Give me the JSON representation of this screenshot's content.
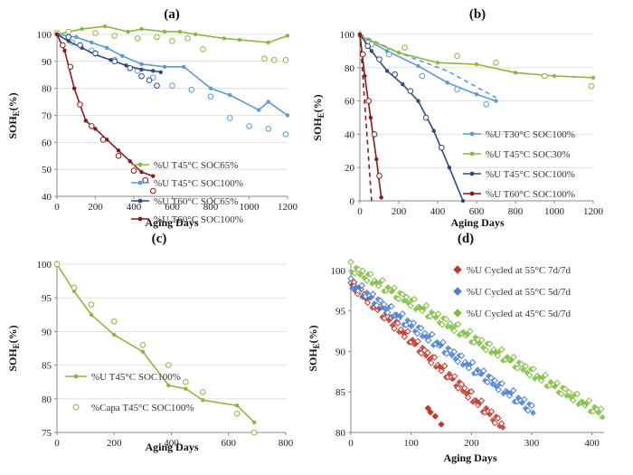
{
  "chart_data": [
    {
      "panel": "(a)",
      "type": "line",
      "xlabel": "Aging Days",
      "ylabel": "SOH",
      "ylabel_sub": "E",
      "ylabel_unit": "(%)",
      "xlim": [
        0,
        1200
      ],
      "ylim": [
        40,
        100
      ],
      "xticks": [
        0,
        200,
        400,
        600,
        800,
        1000,
        1200
      ],
      "yticks": [
        40,
        50,
        60,
        70,
        80,
        90,
        100
      ],
      "legend_position": "bottom-center",
      "series": [
        {
          "name": "%U T45°C SOC65%",
          "color": "#8db640",
          "marker": "dot",
          "x": [
            0,
            130,
            250,
            370,
            440,
            560,
            640,
            720,
            870,
            950,
            1100,
            1200
          ],
          "y": [
            100,
            102,
            103,
            101,
            102,
            101,
            101,
            100,
            98.5,
            98,
            97,
            99.5
          ],
          "scatter_x": [
            0,
            60,
            200,
            300,
            420,
            520,
            600,
            680,
            760,
            1080,
            1130,
            1190
          ],
          "scatter_y": [
            100.5,
            101,
            100.5,
            99.5,
            98.5,
            99,
            97.5,
            98.5,
            94.5,
            91,
            90.5,
            90.5
          ]
        },
        {
          "name": "%U T45°C SOC100%",
          "color": "#5b9bd5",
          "marker": "dot",
          "x": [
            0,
            100,
            180,
            260,
            340,
            440,
            560,
            660,
            800,
            900,
            1050,
            1100,
            1200
          ],
          "y": [
            100,
            99,
            97,
            95,
            92,
            89,
            88,
            88,
            80,
            77.5,
            72,
            75,
            70
          ],
          "scatter_x": [
            80,
            180,
            300,
            420,
            500,
            600,
            700,
            800,
            900,
            1000,
            1100,
            1190
          ],
          "scatter_y": [
            97,
            94,
            90.5,
            86.5,
            84,
            81,
            79.5,
            77,
            69,
            66,
            65,
            63
          ]
        },
        {
          "name": "%U T60°C SOC65%",
          "color": "#2e4a87",
          "marker": "dot",
          "x": [
            0,
            60,
            130,
            200,
            280,
            360,
            440,
            500,
            540
          ],
          "y": [
            100,
            97.5,
            95,
            92.5,
            90.5,
            88.5,
            87,
            86.5,
            86
          ],
          "scatter_x": [
            60,
            120,
            200,
            300,
            380,
            440,
            480,
            520
          ],
          "scatter_y": [
            99,
            96,
            93,
            90,
            87.5,
            84.5,
            83,
            81
          ]
        },
        {
          "name": "%U T60°C SOC100%",
          "color": "#8b1a1a",
          "marker": "dot",
          "x": [
            0,
            40,
            90,
            150,
            200,
            260,
            320,
            380,
            440,
            500
          ],
          "y": [
            100,
            94,
            80,
            68,
            65,
            61,
            57,
            53,
            49,
            47.5
          ],
          "scatter_x": [
            30,
            70,
            120,
            180,
            240,
            320,
            400,
            460,
            500
          ],
          "scatter_y": [
            96,
            88,
            74,
            66,
            61,
            55,
            49.5,
            46,
            42
          ]
        }
      ]
    },
    {
      "panel": "(b)",
      "type": "line",
      "xlabel": "Aging Days",
      "ylabel": "SOH",
      "ylabel_sub": "E",
      "ylabel_unit": "(%)",
      "xlim": [
        0,
        1200
      ],
      "ylim": [
        0,
        100
      ],
      "xticks": [
        0,
        200,
        400,
        600,
        800,
        1000,
        1200
      ],
      "yticks": [
        0,
        20,
        40,
        60,
        80,
        100
      ],
      "legend_position": "bottom-right",
      "series": [
        {
          "name": "%U T30°C SOC100%",
          "color": "#5b9bd5",
          "marker": "dot",
          "x": [
            0,
            140,
            300,
            450,
            600,
            700
          ],
          "y": [
            99,
            90,
            81,
            71,
            64,
            60
          ],
          "dashed_x": [
            0,
            200,
            450,
            700
          ],
          "dashed_y": [
            100,
            89,
            78,
            62
          ],
          "scatter_x": [
            40,
            150,
            320,
            500,
            650
          ],
          "scatter_y": [
            95,
            88,
            75,
            67,
            58
          ]
        },
        {
          "name": "%U T45°C SOC30%",
          "color": "#8db640",
          "marker": "dot",
          "x": [
            0,
            200,
            400,
            600,
            800,
            1000,
            1200
          ],
          "y": [
            99,
            89,
            83,
            82,
            77,
            75,
            74
          ],
          "scatter_x": [
            60,
            230,
            500,
            700,
            950,
            1190
          ],
          "scatter_y": [
            94,
            92,
            87,
            83,
            75,
            69
          ]
        },
        {
          "name": "%U T45°C SOC100%",
          "color": "#2e4a87",
          "marker": "dot",
          "x": [
            0,
            60,
            140,
            220,
            300,
            380,
            460,
            530
          ],
          "y": [
            100,
            90,
            78,
            70,
            60,
            42,
            20,
            0
          ],
          "scatter_x": [
            40,
            100,
            180,
            260,
            340,
            420
          ],
          "scatter_y": [
            93,
            85,
            76,
            66,
            50,
            32
          ]
        },
        {
          "name": "%U T60°C SOC100%",
          "color": "#8b1a1a",
          "marker": "dot",
          "x": [
            0,
            25,
            55,
            85,
            110
          ],
          "y": [
            100,
            75,
            50,
            25,
            2
          ],
          "dashed_x": [
            0,
            60
          ],
          "dashed_y": [
            100,
            0
          ],
          "scatter_x": [
            15,
            45,
            75,
            100
          ],
          "scatter_y": [
            88,
            60,
            40,
            15
          ]
        }
      ]
    },
    {
      "panel": "(c)",
      "type": "line",
      "xlabel": "Aging Days",
      "ylabel": "SOH",
      "ylabel_sub": "E",
      "ylabel_unit": "(%)",
      "xlim": [
        0,
        800
      ],
      "ylim": [
        75,
        100
      ],
      "xticks": [
        0,
        200,
        400,
        600,
        800
      ],
      "yticks": [
        75,
        80,
        85,
        90,
        95,
        100
      ],
      "legend_position": "bottom-left",
      "series": [
        {
          "name": "%U T45°C SOC100%",
          "color": "#8db640",
          "marker": "dot",
          "x": [
            0,
            60,
            120,
            200,
            300,
            390,
            450,
            510,
            630,
            690
          ],
          "y": [
            100,
            96,
            92.5,
            89.5,
            87,
            82,
            81.5,
            79.8,
            79,
            76.5
          ],
          "scatter_x": [],
          "scatter_y": []
        },
        {
          "name": "%Capa T45°C SOC100%",
          "color": "#8db640",
          "marker": "circle",
          "x": [],
          "y": [],
          "scatter_x": [
            0,
            60,
            120,
            200,
            300,
            390,
            450,
            510,
            630,
            690
          ],
          "scatter_y": [
            100,
            96.5,
            94,
            91.5,
            88,
            85,
            82.5,
            81,
            77.8,
            75
          ]
        }
      ]
    },
    {
      "panel": "(d)",
      "type": "scatter",
      "xlabel": "Aging Days",
      "ylabel": "SOH",
      "ylabel_sub": "E",
      "ylabel_unit": "(%)",
      "xlim": [
        0,
        420
      ],
      "ylim": [
        80,
        101
      ],
      "xticks": [
        0,
        100,
        200,
        300,
        400
      ],
      "yticks": [
        80,
        85,
        90,
        95,
        100
      ],
      "legend_position": "top-right",
      "series": [
        {
          "name": "%U Cycled at 55°C 7d/7d",
          "color": "#c0392b",
          "marker": "diamond",
          "x_range": [
            0,
            250
          ],
          "y_start": 98.5,
          "y_end": 81,
          "count": 46,
          "outliers_x": [
            128,
            132,
            140,
            150
          ],
          "outliers_y": [
            83,
            82.5,
            82,
            81
          ]
        },
        {
          "name": "%U Cycled at 55°C 5d/7d",
          "color": "#4a7fd4",
          "marker": "diamond",
          "x_range": [
            0,
            300
          ],
          "y_start": 98.5,
          "y_end": 83,
          "count": 50,
          "outliers_x": [],
          "outliers_y": []
        },
        {
          "name": "%U Cycled at 45°C 5d/7d",
          "color": "#7fbf3f",
          "marker": "diamond",
          "x_range": [
            0,
            415
          ],
          "y_start": 100.5,
          "y_end": 82.5,
          "count": 64,
          "outliers_x": [],
          "outliers_y": []
        }
      ]
    }
  ]
}
